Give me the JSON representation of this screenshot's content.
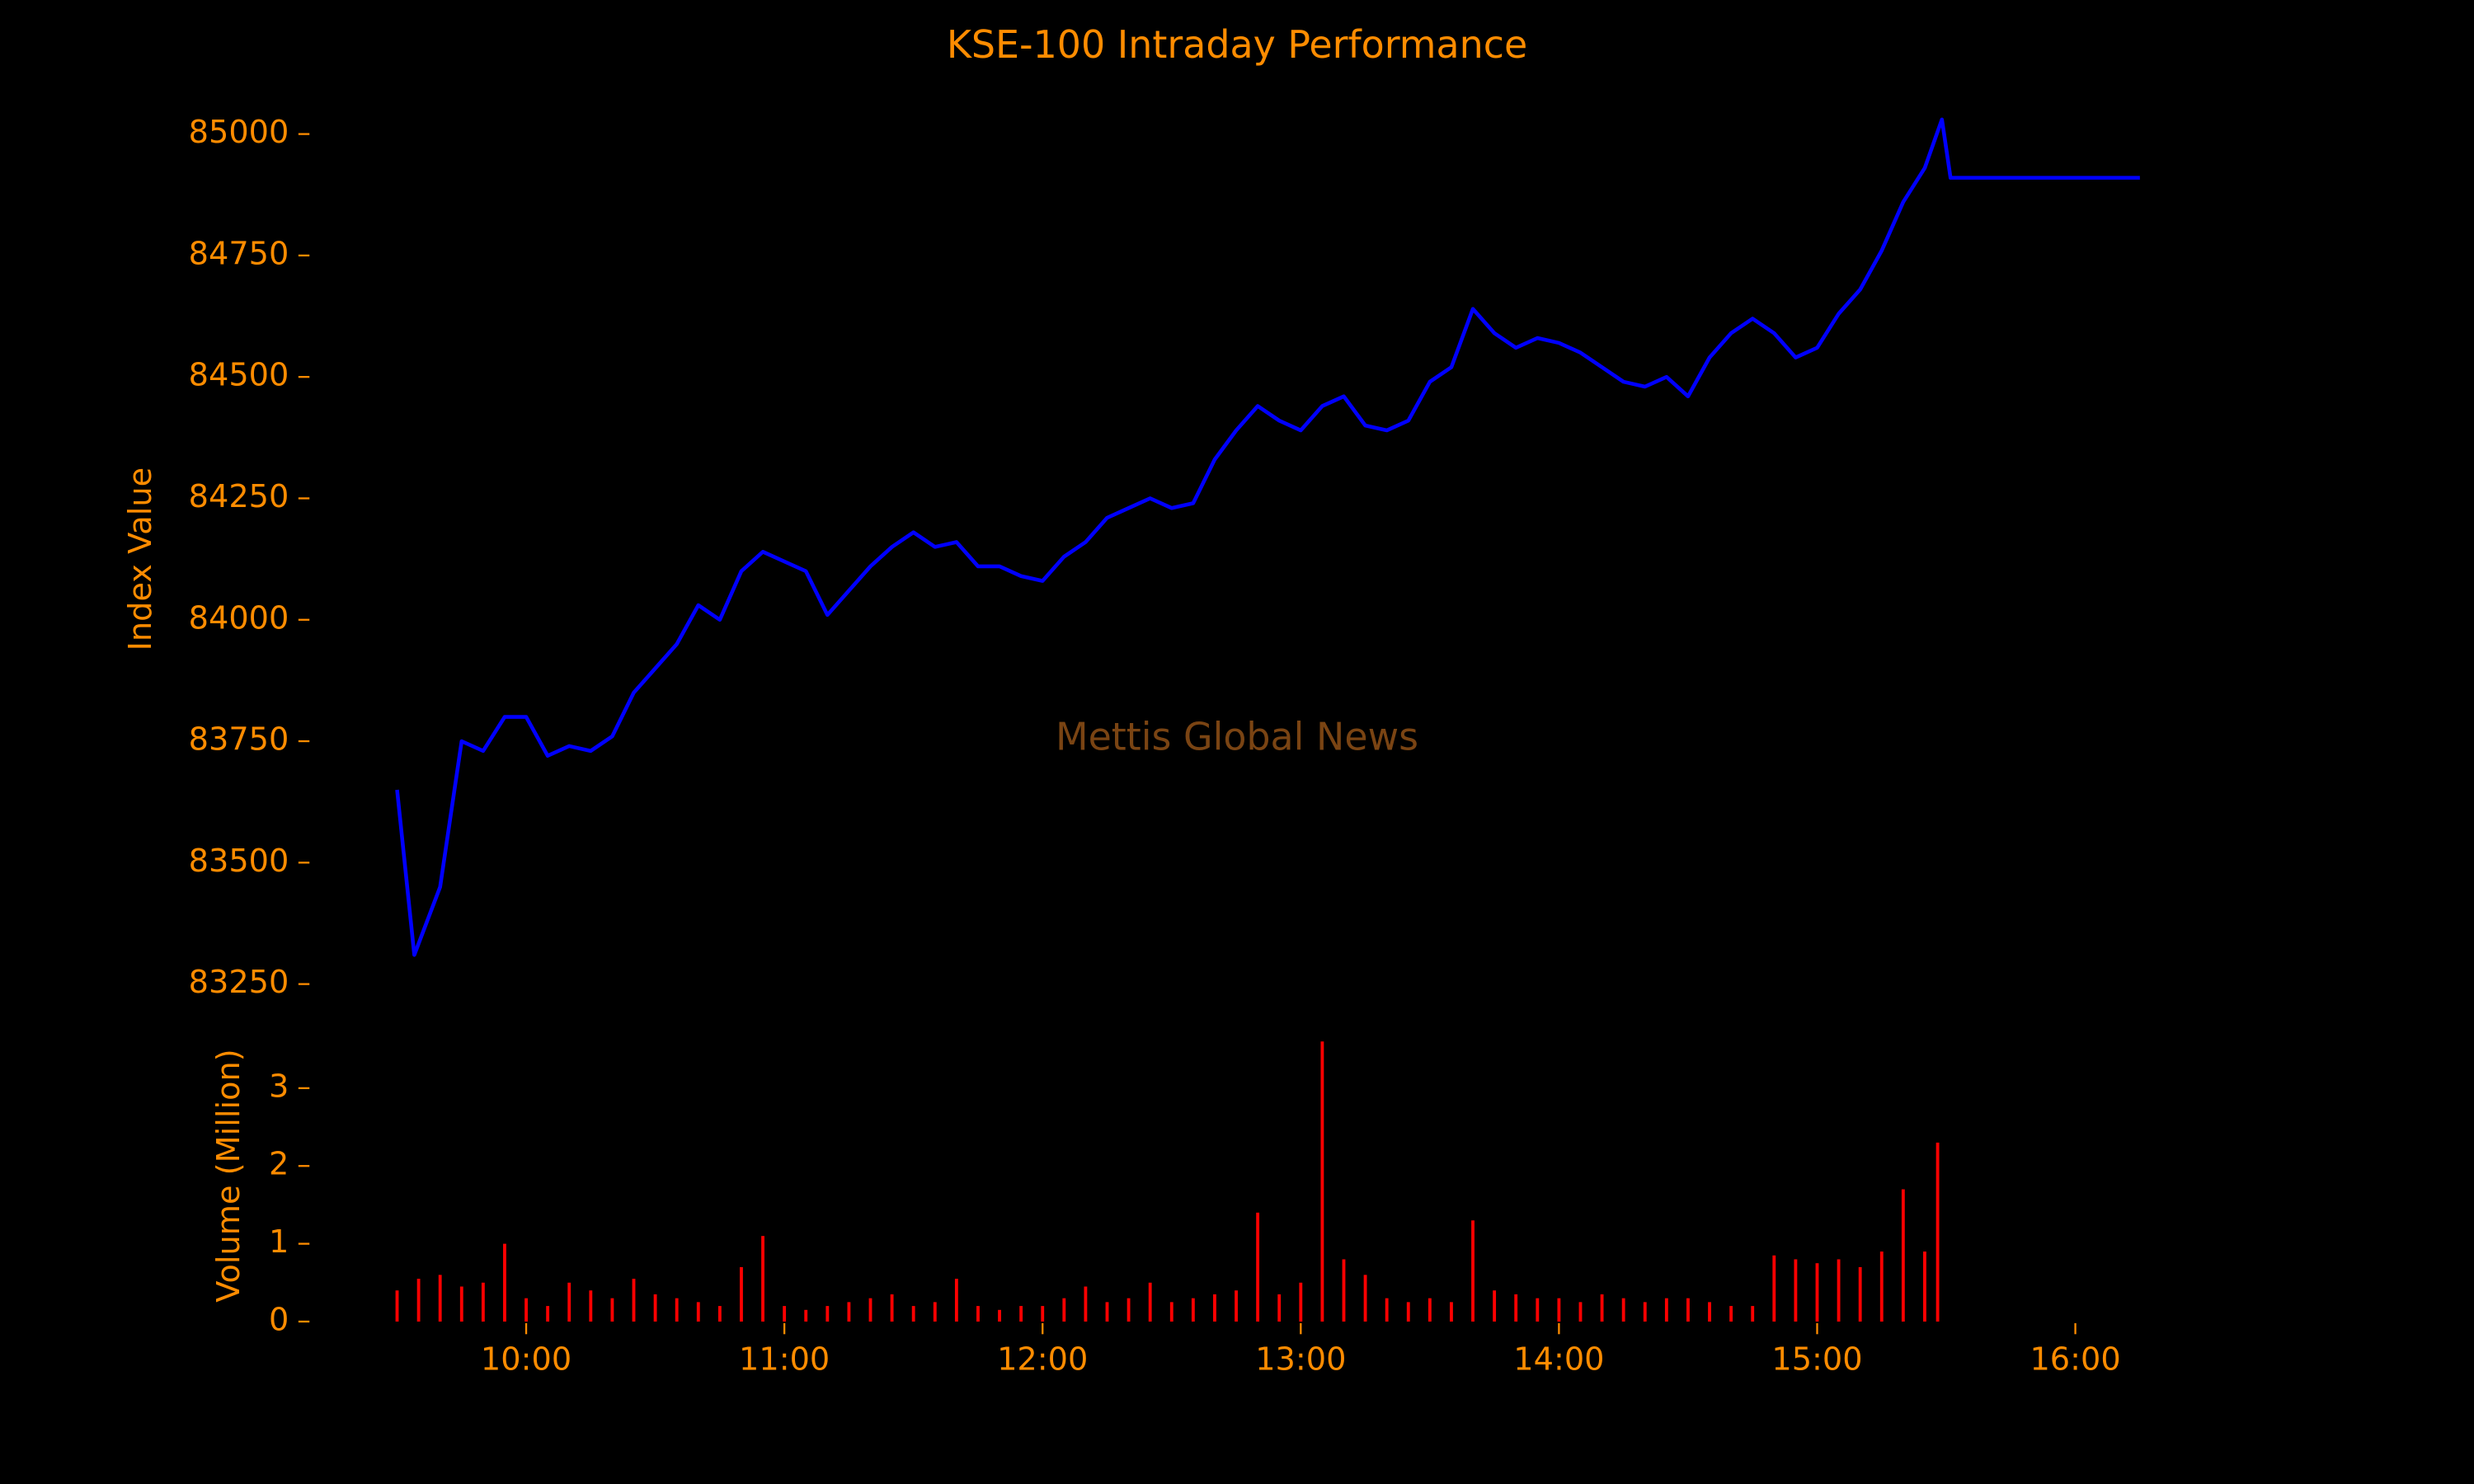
{
  "title": "KSE-100 Intraday Performance",
  "chart_data": [
    {
      "type": "line",
      "ylabel": "Index Value",
      "annotation": "Mettis Global News",
      "annotation_color": "#7a4413",
      "text_color": "#ff8c00",
      "xlim": [
        "09:10",
        "16:20"
      ],
      "ylim": [
        83150,
        85100
      ],
      "yticks": [
        83250,
        83500,
        83750,
        84000,
        84250,
        84500,
        84750,
        85000
      ],
      "series": [
        {
          "name": "KSE-100",
          "color": "#0000ff",
          "x": [
            "09:30",
            "09:34",
            "09:40",
            "09:45",
            "09:50",
            "09:55",
            "10:00",
            "10:05",
            "10:10",
            "10:15",
            "10:20",
            "10:25",
            "10:30",
            "10:35",
            "10:40",
            "10:45",
            "10:50",
            "10:55",
            "11:00",
            "11:05",
            "11:10",
            "11:15",
            "11:20",
            "11:25",
            "11:30",
            "11:35",
            "11:40",
            "11:45",
            "11:50",
            "11:55",
            "12:00",
            "12:05",
            "12:10",
            "12:15",
            "12:20",
            "12:25",
            "12:30",
            "12:35",
            "12:40",
            "12:45",
            "12:50",
            "12:55",
            "13:00",
            "13:05",
            "13:10",
            "13:15",
            "13:20",
            "13:25",
            "13:30",
            "13:35",
            "13:40",
            "13:45",
            "13:50",
            "13:55",
            "14:00",
            "14:05",
            "14:10",
            "14:15",
            "14:20",
            "14:25",
            "14:30",
            "14:35",
            "14:40",
            "14:45",
            "14:50",
            "14:55",
            "15:00",
            "15:05",
            "15:10",
            "15:15",
            "15:20",
            "15:25",
            "15:29",
            "15:31",
            "16:15"
          ],
          "values": [
            83650,
            83310,
            83450,
            83750,
            83730,
            83800,
            83800,
            83720,
            83740,
            83730,
            83760,
            83850,
            83900,
            83950,
            84030,
            84000,
            84100,
            84140,
            84120,
            84100,
            84010,
            84060,
            84110,
            84150,
            84180,
            84150,
            84160,
            84110,
            84110,
            84090,
            84080,
            84130,
            84160,
            84210,
            84230,
            84250,
            84230,
            84240,
            84330,
            84390,
            84440,
            84410,
            84390,
            84440,
            84460,
            84400,
            84390,
            84410,
            84490,
            84520,
            84640,
            84590,
            84560,
            84580,
            84570,
            84550,
            84520,
            84490,
            84480,
            84500,
            84460,
            84540,
            84590,
            84620,
            84590,
            84540,
            84560,
            84630,
            84680,
            84760,
            84860,
            84930,
            85030,
            84910,
            84910
          ]
        }
      ]
    },
    {
      "type": "bar",
      "ylabel": "Volume (Million)",
      "text_color": "#ff8c00",
      "xlim": [
        "09:10",
        "16:20"
      ],
      "ylim": [
        0,
        3.75
      ],
      "yticks": [
        0,
        1,
        2,
        3
      ],
      "xticks": [
        "10:00",
        "11:00",
        "12:00",
        "13:00",
        "14:00",
        "15:00",
        "16:00"
      ],
      "series": [
        {
          "name": "Volume",
          "color": "#ff0000",
          "x": [
            "09:30",
            "09:35",
            "09:40",
            "09:45",
            "09:50",
            "09:55",
            "10:00",
            "10:05",
            "10:10",
            "10:15",
            "10:20",
            "10:25",
            "10:30",
            "10:35",
            "10:40",
            "10:45",
            "10:50",
            "10:55",
            "11:00",
            "11:05",
            "11:10",
            "11:15",
            "11:20",
            "11:25",
            "11:30",
            "11:35",
            "11:40",
            "11:45",
            "11:50",
            "11:55",
            "12:00",
            "12:05",
            "12:10",
            "12:15",
            "12:20",
            "12:25",
            "12:30",
            "12:35",
            "12:40",
            "12:45",
            "12:50",
            "12:55",
            "13:00",
            "13:05",
            "13:10",
            "13:15",
            "13:20",
            "13:25",
            "13:30",
            "13:35",
            "13:40",
            "13:45",
            "13:50",
            "13:55",
            "14:00",
            "14:05",
            "14:10",
            "14:15",
            "14:20",
            "14:25",
            "14:30",
            "14:35",
            "14:40",
            "14:45",
            "14:50",
            "14:55",
            "15:00",
            "15:05",
            "15:10",
            "15:15",
            "15:20",
            "15:25",
            "15:28"
          ],
          "values": [
            0.4,
            0.55,
            0.6,
            0.45,
            0.5,
            1.0,
            0.3,
            0.2,
            0.5,
            0.4,
            0.3,
            0.55,
            0.35,
            0.3,
            0.25,
            0.2,
            0.7,
            1.1,
            0.2,
            0.15,
            0.2,
            0.25,
            0.3,
            0.35,
            0.2,
            0.25,
            0.55,
            0.2,
            0.15,
            0.2,
            0.2,
            0.3,
            0.45,
            0.25,
            0.3,
            0.5,
            0.25,
            0.3,
            0.35,
            0.4,
            1.4,
            0.35,
            0.5,
            3.6,
            0.8,
            0.6,
            0.3,
            0.25,
            0.3,
            0.25,
            1.3,
            0.4,
            0.35,
            0.3,
            0.3,
            0.25,
            0.35,
            0.3,
            0.25,
            0.3,
            0.3,
            0.25,
            0.2,
            0.2,
            0.85,
            0.8,
            0.75,
            0.8,
            0.7,
            0.9,
            1.7,
            0.9,
            2.3
          ]
        }
      ]
    }
  ]
}
